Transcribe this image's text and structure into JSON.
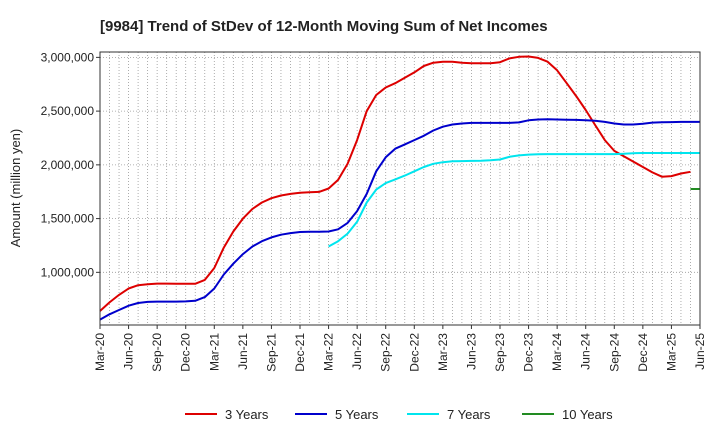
{
  "chart_data": {
    "type": "line",
    "title": "[9984]  Trend of StDev of 12-Month Moving Sum of Net Incomes",
    "xlabel": "",
    "ylabel": "Amount (million yen)",
    "ylim": [
      510000,
      3050000
    ],
    "yticks": [
      1000000,
      1500000,
      2000000,
      2500000,
      3000000
    ],
    "ytick_labels": [
      "1,000,000",
      "1,500,000",
      "2,000,000",
      "2,500,000",
      "3,000,000"
    ],
    "xtick_labels": [
      "Mar-20",
      "Jun-20",
      "Sep-20",
      "Dec-20",
      "Mar-21",
      "Jun-21",
      "Sep-21",
      "Dec-21",
      "Mar-22",
      "Jun-22",
      "Sep-22",
      "Dec-22",
      "Mar-23",
      "Jun-23",
      "Sep-23",
      "Dec-23",
      "Mar-24",
      "Jun-24",
      "Sep-24",
      "Dec-24",
      "Mar-25",
      "Jun-25"
    ],
    "x_start": "2020-03",
    "grid": true,
    "legend_position": "bottom",
    "series": [
      {
        "name": "3 Years",
        "color": "#dd0000",
        "start_month_index": 0,
        "values": [
          640000,
          720000,
          790000,
          850000,
          880000,
          890000,
          895000,
          895000,
          893000,
          893000,
          893000,
          930000,
          1040000,
          1230000,
          1380000,
          1500000,
          1590000,
          1650000,
          1690000,
          1715000,
          1730000,
          1740000,
          1745000,
          1748000,
          1780000,
          1860000,
          2010000,
          2230000,
          2500000,
          2650000,
          2720000,
          2760000,
          2810000,
          2860000,
          2920000,
          2950000,
          2960000,
          2960000,
          2950000,
          2945000,
          2945000,
          2945000,
          2955000,
          2990000,
          3005000,
          3008000,
          2995000,
          2960000,
          2880000,
          2760000,
          2640000,
          2510000,
          2370000,
          2230000,
          2130000,
          2080000,
          2030000,
          1980000,
          1930000,
          1890000,
          1895000,
          1920000,
          1935000
        ]
      },
      {
        "name": "5 Years",
        "color": "#0000cc",
        "start_month_index": 0,
        "values": [
          560000,
          610000,
          650000,
          690000,
          715000,
          725000,
          728000,
          728000,
          728000,
          730000,
          735000,
          770000,
          850000,
          980000,
          1080000,
          1170000,
          1240000,
          1290000,
          1325000,
          1350000,
          1365000,
          1375000,
          1378000,
          1378000,
          1380000,
          1400000,
          1460000,
          1570000,
          1730000,
          1940000,
          2070000,
          2150000,
          2190000,
          2230000,
          2270000,
          2320000,
          2355000,
          2375000,
          2385000,
          2390000,
          2390000,
          2390000,
          2390000,
          2390000,
          2395000,
          2415000,
          2422000,
          2424000,
          2422000,
          2420000,
          2418000,
          2415000,
          2410000,
          2400000,
          2385000,
          2375000,
          2375000,
          2383000,
          2393000,
          2397000,
          2398000,
          2400000,
          2400000,
          2400000
        ]
      },
      {
        "name": "7 Years",
        "color": "#00e5ee",
        "start_month_index": 24,
        "values": [
          1240000,
          1290000,
          1360000,
          1470000,
          1650000,
          1770000,
          1830000,
          1865000,
          1900000,
          1940000,
          1980000,
          2010000,
          2025000,
          2033000,
          2035000,
          2037000,
          2038000,
          2042000,
          2050000,
          2075000,
          2088000,
          2095000,
          2098000,
          2100000,
          2100000,
          2100000,
          2100000,
          2100000,
          2100000,
          2100000,
          2100000,
          2103000,
          2108000,
          2110000,
          2110000,
          2110000,
          2110000,
          2110000,
          2110000,
          2110000
        ]
      },
      {
        "name": "10 Years",
        "color": "#228b22",
        "start_month_index": 62,
        "values": [
          1775000,
          1775000
        ]
      }
    ]
  }
}
